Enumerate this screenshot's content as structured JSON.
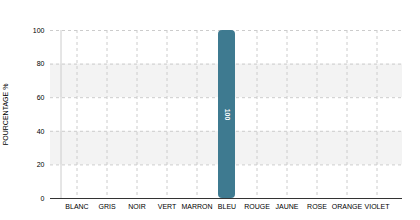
{
  "chart_data": {
    "type": "bar",
    "y_label": "POURCENTAGE %",
    "categories": [
      "BLANC",
      "GRIS",
      "NOIR",
      "VERT",
      "MARRON",
      "BLEU",
      "ROUGE",
      "JAUNE",
      "ROSE",
      "ORANGE",
      "VIOLET"
    ],
    "values": [
      0,
      0,
      0,
      0,
      0,
      100,
      0,
      0,
      0,
      0,
      0
    ],
    "value_labels": [
      null,
      null,
      null,
      null,
      null,
      "100",
      null,
      null,
      null,
      null,
      null
    ],
    "color": "#3e7a90",
    "ylim": [
      0,
      100
    ],
    "yticks": [
      0,
      20,
      40,
      60,
      80,
      100
    ],
    "grid": true,
    "data_labels": true
  }
}
